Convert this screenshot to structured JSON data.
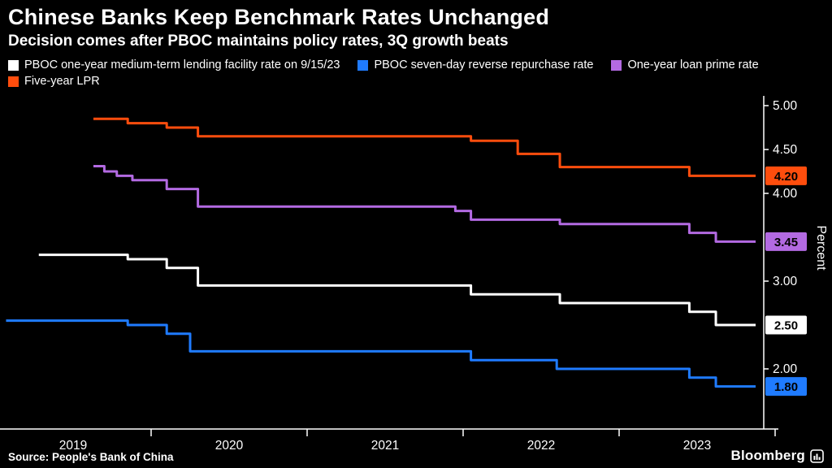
{
  "header": {
    "title": "Chinese Banks Keep Benchmark Rates Unchanged",
    "subtitle": "Decision comes after PBOC maintains policy rates, 3Q growth beats"
  },
  "footer": {
    "source": "Source: People's Bank of China",
    "brand": "Bloomberg"
  },
  "chart_data": {
    "type": "line",
    "subtype": "step",
    "title": "Chinese Banks Keep Benchmark Rates Unchanged",
    "xlabel": "",
    "ylabel": "Percent",
    "grid": false,
    "legend_position": "top",
    "x_domain": [
      2019.07,
      2023.92
    ],
    "y_domain": [
      1.33,
      5.09
    ],
    "x_tick_labels": [
      "2019",
      "2020",
      "2021",
      "2022",
      "2023"
    ],
    "x_tick_centers": [
      2019.5,
      2020.5,
      2021.5,
      2022.5,
      2023.5
    ],
    "x_boundaries": [
      2020,
      2021,
      2022,
      2023,
      2024
    ],
    "y_ticks": [
      {
        "label": "5.00",
        "value": 5.0
      },
      {
        "label": "4.50",
        "value": 4.5
      },
      {
        "label": "4.00",
        "value": 4.0
      },
      {
        "label": "3.00",
        "value": 3.0
      },
      {
        "label": "2.00",
        "value": 2.0
      }
    ],
    "series": [
      {
        "name": "PBOC one-year medium-term lending facility rate on 9/15/23",
        "color": "#ffffff",
        "legend_row": 1,
        "end_label": "2.50",
        "end_label_text_color": "#000000",
        "end_x": 2023.875,
        "points": [
          [
            2019.28,
            3.3
          ],
          [
            2019.85,
            3.25
          ],
          [
            2020.1,
            3.15
          ],
          [
            2020.3,
            2.95
          ],
          [
            2022.05,
            2.85
          ],
          [
            2022.62,
            2.75
          ],
          [
            2023.45,
            2.65
          ],
          [
            2023.62,
            2.5
          ]
        ]
      },
      {
        "name": "PBOC seven-day reverse repurchase rate",
        "color": "#1f7bff",
        "legend_row": 1,
        "end_label": "1.80",
        "end_label_text_color": "#000000",
        "end_x": 2023.875,
        "points": [
          [
            2019.07,
            2.55
          ],
          [
            2019.85,
            2.5
          ],
          [
            2020.1,
            2.4
          ],
          [
            2020.25,
            2.2
          ],
          [
            2022.05,
            2.1
          ],
          [
            2022.6,
            2.0
          ],
          [
            2023.45,
            1.9
          ],
          [
            2023.62,
            1.8
          ]
        ]
      },
      {
        "name": "One-year loan prime rate",
        "color": "#b36ae2",
        "legend_row": 1,
        "end_label": "3.45",
        "end_label_text_color": "#000000",
        "end_x": 2023.875,
        "points": [
          [
            2019.63,
            4.31
          ],
          [
            2019.7,
            4.25
          ],
          [
            2019.78,
            4.2
          ],
          [
            2019.88,
            4.15
          ],
          [
            2020.1,
            4.05
          ],
          [
            2020.3,
            3.85
          ],
          [
            2021.95,
            3.8
          ],
          [
            2022.05,
            3.7
          ],
          [
            2022.62,
            3.65
          ],
          [
            2023.45,
            3.55
          ],
          [
            2023.62,
            3.45
          ]
        ]
      },
      {
        "name": "Five-year LPR",
        "color": "#ff4d0d",
        "legend_row": 2,
        "end_label": "4.20",
        "end_label_text_color": "#000000",
        "end_x": 2023.875,
        "points": [
          [
            2019.63,
            4.85
          ],
          [
            2019.85,
            4.8
          ],
          [
            2020.1,
            4.75
          ],
          [
            2020.3,
            4.65
          ],
          [
            2022.05,
            4.6
          ],
          [
            2022.35,
            4.45
          ],
          [
            2022.62,
            4.3
          ],
          [
            2023.45,
            4.2
          ]
        ]
      }
    ]
  }
}
